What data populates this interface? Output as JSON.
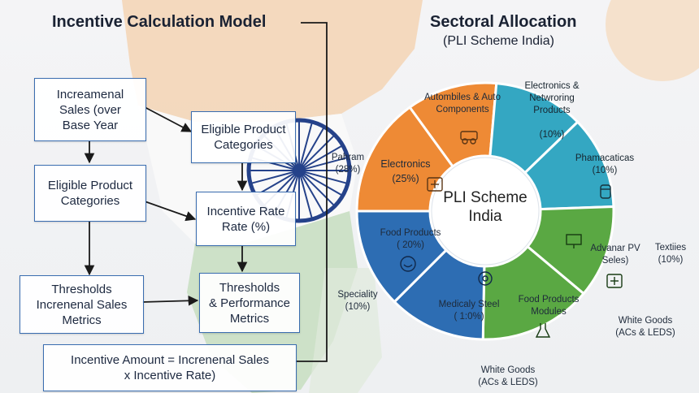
{
  "left_panel": {
    "title": "Incentive Calculation Model",
    "boxes": {
      "incremental_sales": "Increamenal\nSales (over\nBase Year",
      "eligible_categories_right": "Eligible Product\nCategories",
      "eligible_categories_left": "Eligible Product\nCategories",
      "incentive_rate": "Incentive Rate\nRate (%)",
      "thresholds_left": "Thresholds\nIncrenenal Sales\nMetrics",
      "thresholds_right": "Thresholds\n& Performance\nMetrics",
      "incentive_amount": "Incentive Amount = Increnenal Sales\nx Incentive Rate)"
    }
  },
  "right_panel": {
    "title": "Sectoral Allocation",
    "subtitle": "(PLI Scheme India)",
    "center_label": "PLI Scheme\nIndia",
    "segments": {
      "automobiles": "Autombiles & Auto\nComponents",
      "electronics_networking": "Electronics &\nNetwroring\nProducts\n\n(10%)",
      "electronics": "Electronics\n(25%)",
      "pharma": "Phamacaticas\n(10%)",
      "food_products": "Food Products\n( 20%)",
      "advanced_pv": "Advanar PV\nSeles)",
      "medical_steel": "Medicaly Steel\n( 1:0%)",
      "food_modules": "Food Products\nModules"
    },
    "outside_labels": {
      "pharam": "Pahram\n(28%)",
      "specialty": "Speciality\n(10%)",
      "textiles": "Textiies\n(10%)",
      "white_goods_right": "White Goods\n(ACs & LEDS)",
      "white_goods_bottom": "White Goods\n(ACs & LEDS)"
    }
  },
  "colors": {
    "box_border": "#3a6db0",
    "arrow": "#1a1a1a",
    "orange": "#ee8a35",
    "teal": "#34a7c2",
    "blue": "#2d6db3",
    "green": "#5aa843",
    "saffron_map": "#f3d3b4",
    "green_map": "#c9dfc3",
    "chakra": "#25428a"
  },
  "icons": [
    "car-parts-icon",
    "circuit-board-icon",
    "pill-bottle-icon",
    "food-bowl-icon",
    "solar-panel-icon",
    "stethoscope-icon",
    "steel-factory-icon",
    "lab-flask-icon"
  ]
}
